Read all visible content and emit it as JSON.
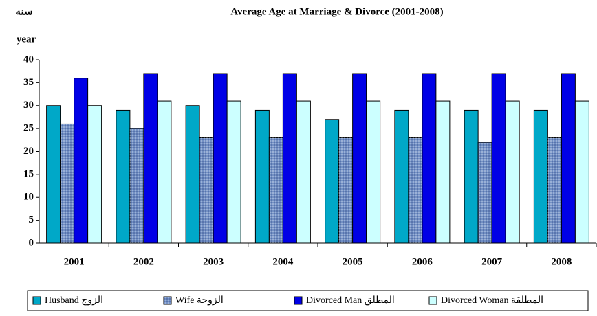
{
  "chart_data": {
    "type": "bar",
    "title": "Average Age at Marriage & Divorce (2001-2008)",
    "y_label_ar": "سنه",
    "y_label": "year",
    "categories": [
      "2001",
      "2002",
      "2003",
      "2004",
      "2005",
      "2006",
      "2007",
      "2008"
    ],
    "series": [
      {
        "name": "Husband الزوج",
        "color": "#00a8c8",
        "values": [
          30,
          29,
          30,
          29,
          27,
          29,
          29,
          29
        ]
      },
      {
        "name": "Wife الزوجة",
        "color": "#7290c4",
        "values": [
          26,
          25,
          23,
          23,
          23,
          23,
          22,
          23
        ]
      },
      {
        "name": "Divorced Man المطلق",
        "color": "#0000e6",
        "values": [
          36,
          37,
          37,
          37,
          37,
          37,
          37,
          37
        ]
      },
      {
        "name": "Divorced Woman المطلقة",
        "color": "#ccffff",
        "values": [
          30,
          31,
          31,
          31,
          31,
          31,
          31,
          31
        ]
      }
    ],
    "ylim": [
      0,
      40
    ],
    "yticks": [
      0,
      5,
      10,
      15,
      20,
      25,
      30,
      35,
      40
    ],
    "grid": false,
    "legend": "bottom"
  }
}
